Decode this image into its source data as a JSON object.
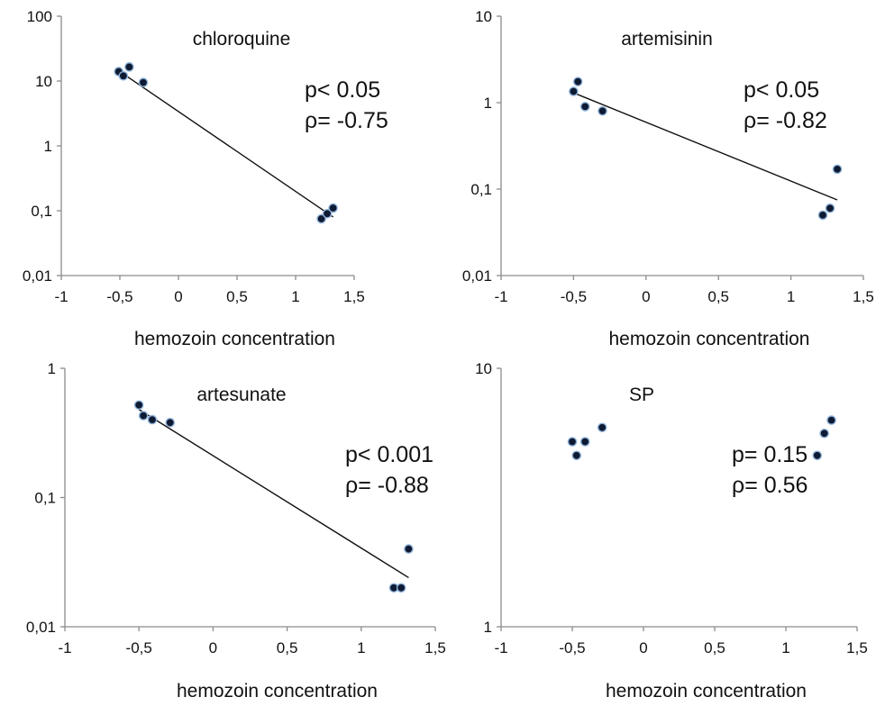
{
  "chart_data": [
    {
      "type": "scatter",
      "title": "chloroquine",
      "xlabel": "hemozoin concentration",
      "ylabel": "",
      "xlim": [
        -1,
        1.5
      ],
      "ylim": [
        0.01,
        100
      ],
      "yscale": "log",
      "xticks": [
        "-1",
        "-0,5",
        "0",
        "0,5",
        "1",
        "1,5"
      ],
      "yticks": [
        "0,01",
        "0,1",
        "1",
        "10",
        "100"
      ],
      "points": [
        {
          "x": -0.51,
          "y": 14
        },
        {
          "x": -0.47,
          "y": 12
        },
        {
          "x": -0.42,
          "y": 16.5
        },
        {
          "x": -0.3,
          "y": 9.5
        },
        {
          "x": 1.22,
          "y": 0.075
        },
        {
          "x": 1.27,
          "y": 0.09
        },
        {
          "x": 1.32,
          "y": 0.11
        }
      ],
      "trendline": {
        "x": [
          -0.5,
          1.32
        ],
        "y": [
          14,
          0.08
        ]
      },
      "stats": [
        "p< 0.05",
        "ρ= -0.75"
      ]
    },
    {
      "type": "scatter",
      "title": "artemisinin",
      "xlabel": "hemozoin concentration",
      "ylabel": "",
      "xlim": [
        -1,
        1.5
      ],
      "ylim": [
        0.01,
        10
      ],
      "yscale": "log",
      "xticks": [
        "-1",
        "-0,5",
        "0",
        "0,5",
        "1",
        "1,5"
      ],
      "yticks": [
        "0,01",
        "0,1",
        "1",
        "10"
      ],
      "points": [
        {
          "x": -0.5,
          "y": 1.35
        },
        {
          "x": -0.47,
          "y": 1.75
        },
        {
          "x": -0.42,
          "y": 0.9
        },
        {
          "x": -0.3,
          "y": 0.8
        },
        {
          "x": 1.22,
          "y": 0.05
        },
        {
          "x": 1.27,
          "y": 0.06
        },
        {
          "x": 1.32,
          "y": 0.17
        }
      ],
      "trendline": {
        "x": [
          -0.5,
          1.32
        ],
        "y": [
          1.3,
          0.075
        ]
      },
      "stats": [
        "p< 0.05",
        "ρ= -0.82"
      ]
    },
    {
      "type": "scatter",
      "title": "artesunate",
      "xlabel": "hemozoin concentration",
      "ylabel": "",
      "xlim": [
        -1,
        1.5
      ],
      "ylim": [
        0.01,
        1
      ],
      "yscale": "log",
      "xticks": [
        "-1",
        "-0,5",
        "0",
        "0,5",
        "1",
        "1,5"
      ],
      "yticks": [
        "0,01",
        "0,1",
        "1"
      ],
      "points": [
        {
          "x": -0.5,
          "y": 0.52
        },
        {
          "x": -0.47,
          "y": 0.43
        },
        {
          "x": -0.41,
          "y": 0.4
        },
        {
          "x": -0.29,
          "y": 0.38
        },
        {
          "x": 1.22,
          "y": 0.02
        },
        {
          "x": 1.27,
          "y": 0.02
        },
        {
          "x": 1.32,
          "y": 0.04
        }
      ],
      "trendline": {
        "x": [
          -0.5,
          1.32
        ],
        "y": [
          0.48,
          0.024
        ]
      },
      "stats": [
        "p< 0.001",
        "ρ= -0.88"
      ]
    },
    {
      "type": "scatter",
      "title": "SP",
      "xlabel": "hemozoin concentration",
      "ylabel": "",
      "xlim": [
        -1,
        1.5
      ],
      "ylim": [
        1,
        10
      ],
      "yscale": "log",
      "xticks": [
        "-1",
        "-0,5",
        "0",
        "0,5",
        "1",
        "1,5"
      ],
      "yticks": [
        "1",
        "10"
      ],
      "points": [
        {
          "x": -0.5,
          "y": 5.2
        },
        {
          "x": -0.47,
          "y": 4.6
        },
        {
          "x": -0.41,
          "y": 5.2
        },
        {
          "x": -0.29,
          "y": 5.9
        },
        {
          "x": 1.22,
          "y": 4.6
        },
        {
          "x": 1.27,
          "y": 5.6
        },
        {
          "x": 1.32,
          "y": 6.3
        }
      ],
      "trendline": null,
      "stats": [
        "p= 0.15",
        "ρ= 0.56"
      ]
    }
  ]
}
